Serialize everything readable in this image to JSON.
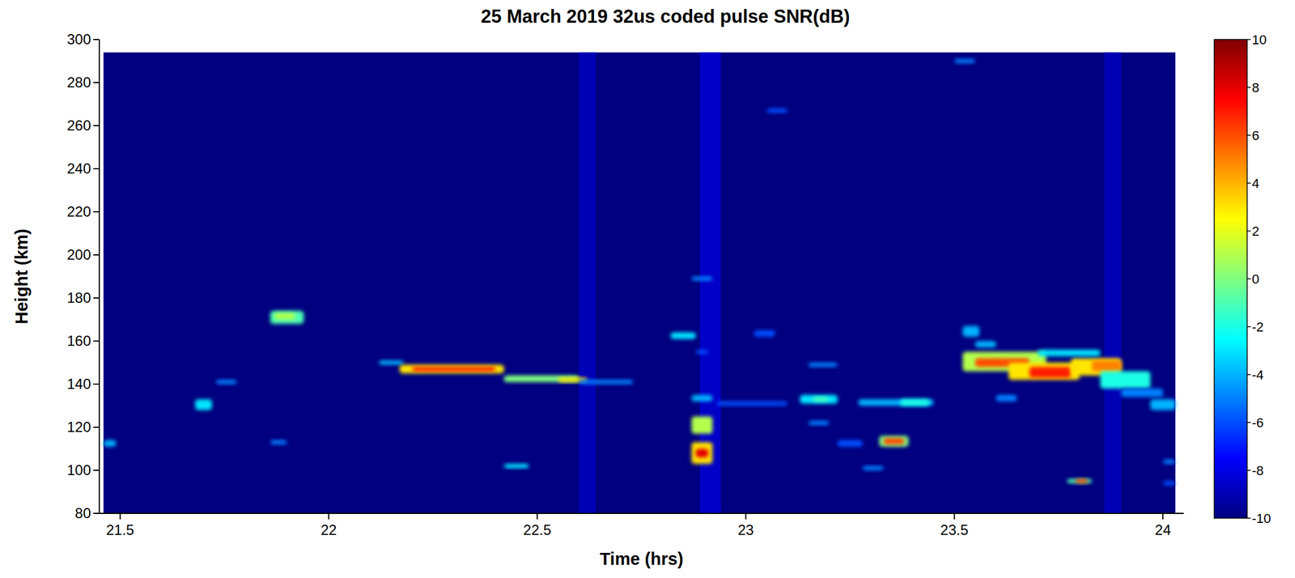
{
  "chart_data": {
    "type": "heatmap",
    "title": "25 March 2019  32us coded pulse SNR(dB)",
    "x_label": "Time (hrs)",
    "y_label": "Height (km)",
    "xlim": [
      21.45,
      24.05
    ],
    "xticks": [
      21.5,
      22,
      22.5,
      23,
      23.5,
      24
    ],
    "ylim": [
      80,
      300
    ],
    "yticks": [
      80,
      100,
      120,
      140,
      160,
      180,
      200,
      220,
      240,
      260,
      280,
      300
    ],
    "colorbar": {
      "range": [
        -10,
        10
      ],
      "ticks": [
        -10,
        -8,
        -6,
        -4,
        -2,
        0,
        2,
        4,
        6,
        8,
        10
      ]
    },
    "cells": [
      {
        "x": [
          21.46,
          24.03
        ],
        "y": [
          80,
          294
        ],
        "value": -10
      },
      {
        "x": [
          22.6,
          22.64
        ],
        "y": [
          80,
          294
        ],
        "value": -8.5
      },
      {
        "x": [
          22.89,
          22.94
        ],
        "y": [
          80,
          294
        ],
        "value": -8
      },
      {
        "x": [
          23.86,
          23.9
        ],
        "y": [
          80,
          294
        ],
        "value": -8.5
      },
      {
        "x": [
          21.46,
          21.49
        ],
        "y": [
          111,
          114
        ],
        "value": -4
      },
      {
        "x": [
          21.68,
          21.72
        ],
        "y": [
          128,
          133
        ],
        "value": -3
      },
      {
        "x": [
          21.73,
          21.78
        ],
        "y": [
          140,
          142
        ],
        "value": -5
      },
      {
        "x": [
          21.86,
          21.94
        ],
        "y": [
          168,
          174
        ],
        "value": -1
      },
      {
        "x": [
          21.87,
          21.92
        ],
        "y": [
          170,
          173
        ],
        "value": 1
      },
      {
        "x": [
          21.86,
          21.9
        ],
        "y": [
          112,
          114
        ],
        "value": -5
      },
      {
        "x": [
          22.12,
          22.18
        ],
        "y": [
          149,
          151
        ],
        "value": -4
      },
      {
        "x": [
          22.17,
          22.42
        ],
        "y": [
          145,
          149
        ],
        "value": 3
      },
      {
        "x": [
          22.2,
          22.4
        ],
        "y": [
          146,
          148
        ],
        "value": 7
      },
      {
        "x": [
          22.42,
          22.6
        ],
        "y": [
          141,
          144
        ],
        "value": 0
      },
      {
        "x": [
          22.55,
          22.62
        ],
        "y": [
          141,
          143
        ],
        "value": 3
      },
      {
        "x": [
          22.6,
          22.73
        ],
        "y": [
          140,
          142
        ],
        "value": -5
      },
      {
        "x": [
          22.42,
          22.48
        ],
        "y": [
          101,
          103
        ],
        "value": -3
      },
      {
        "x": [
          22.82,
          22.88
        ],
        "y": [
          161,
          164
        ],
        "value": -3
      },
      {
        "x": [
          22.87,
          22.92
        ],
        "y": [
          188,
          190
        ],
        "value": -5
      },
      {
        "x": [
          22.88,
          22.91
        ],
        "y": [
          154,
          156
        ],
        "value": -6
      },
      {
        "x": [
          22.87,
          22.92
        ],
        "y": [
          132,
          135
        ],
        "value": -4
      },
      {
        "x": [
          22.87,
          22.92
        ],
        "y": [
          117,
          125
        ],
        "value": 1
      },
      {
        "x": [
          22.87,
          22.92
        ],
        "y": [
          103,
          113
        ],
        "value": 3
      },
      {
        "x": [
          22.88,
          22.91
        ],
        "y": [
          106,
          110
        ],
        "value": 8
      },
      {
        "x": [
          22.93,
          23.1
        ],
        "y": [
          130,
          132
        ],
        "value": -6
      },
      {
        "x": [
          23.02,
          23.07
        ],
        "y": [
          162,
          165
        ],
        "value": -6
      },
      {
        "x": [
          23.05,
          23.1
        ],
        "y": [
          266,
          268
        ],
        "value": -6
      },
      {
        "x": [
          23.15,
          23.22
        ],
        "y": [
          148,
          150
        ],
        "value": -5
      },
      {
        "x": [
          23.13,
          23.22
        ],
        "y": [
          131,
          135
        ],
        "value": -3
      },
      {
        "x": [
          23.16,
          23.2
        ],
        "y": [
          132,
          134
        ],
        "value": -1
      },
      {
        "x": [
          23.15,
          23.2
        ],
        "y": [
          121,
          123
        ],
        "value": -5
      },
      {
        "x": [
          23.22,
          23.28
        ],
        "y": [
          111,
          114
        ],
        "value": -6
      },
      {
        "x": [
          23.27,
          23.45
        ],
        "y": [
          130,
          133
        ],
        "value": -4
      },
      {
        "x": [
          23.37,
          23.44
        ],
        "y": [
          130,
          133
        ],
        "value": -2
      },
      {
        "x": [
          23.32,
          23.39
        ],
        "y": [
          111,
          116
        ],
        "value": 0
      },
      {
        "x": [
          23.33,
          23.38
        ],
        "y": [
          112,
          115
        ],
        "value": 6
      },
      {
        "x": [
          23.28,
          23.33
        ],
        "y": [
          100,
          102
        ],
        "value": -5
      },
      {
        "x": [
          23.5,
          23.55
        ],
        "y": [
          289,
          291
        ],
        "value": -5
      },
      {
        "x": [
          23.52,
          23.56
        ],
        "y": [
          162,
          167
        ],
        "value": -4
      },
      {
        "x": [
          23.55,
          23.6
        ],
        "y": [
          157,
          160
        ],
        "value": -4
      },
      {
        "x": [
          23.52,
          23.72
        ],
        "y": [
          146,
          155
        ],
        "value": 1
      },
      {
        "x": [
          23.55,
          23.68
        ],
        "y": [
          148,
          152
        ],
        "value": 6
      },
      {
        "x": [
          23.63,
          23.8
        ],
        "y": [
          142,
          150
        ],
        "value": 3
      },
      {
        "x": [
          23.68,
          23.78
        ],
        "y": [
          143,
          148
        ],
        "value": 7
      },
      {
        "x": [
          23.78,
          23.9
        ],
        "y": [
          144,
          152
        ],
        "value": 3
      },
      {
        "x": [
          23.83,
          23.9
        ],
        "y": [
          146,
          151
        ],
        "value": 5
      },
      {
        "x": [
          23.7,
          23.85
        ],
        "y": [
          153,
          156
        ],
        "value": -3
      },
      {
        "x": [
          23.85,
          23.97
        ],
        "y": [
          138,
          146
        ],
        "value": -2
      },
      {
        "x": [
          23.9,
          24.0
        ],
        "y": [
          134,
          138
        ],
        "value": -5
      },
      {
        "x": [
          23.97,
          24.03
        ],
        "y": [
          128,
          133
        ],
        "value": -4
      },
      {
        "x": [
          23.6,
          23.65
        ],
        "y": [
          132,
          135
        ],
        "value": -5
      },
      {
        "x": [
          23.77,
          23.83
        ],
        "y": [
          94,
          96
        ],
        "value": -1
      },
      {
        "x": [
          23.79,
          23.82
        ],
        "y": [
          94,
          96
        ],
        "value": 6
      },
      {
        "x": [
          24.0,
          24.03
        ],
        "y": [
          103,
          105
        ],
        "value": -5
      },
      {
        "x": [
          24.0,
          24.03
        ],
        "y": [
          93,
          95
        ],
        "value": -6
      }
    ]
  }
}
